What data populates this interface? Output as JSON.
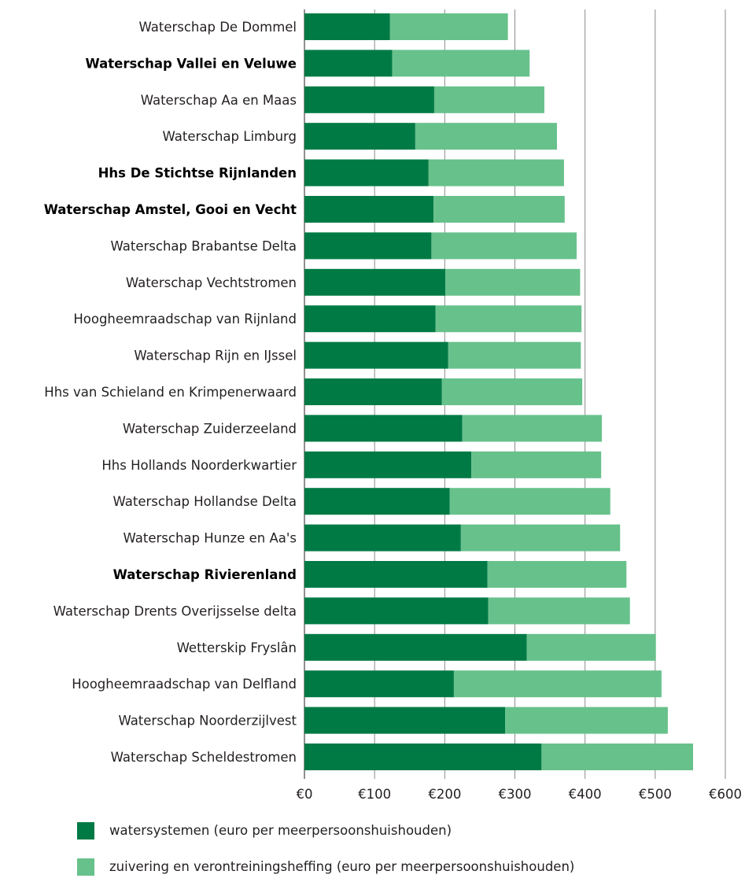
{
  "chart_data": {
    "type": "bar",
    "orientation": "horizontal",
    "stacked": true,
    "categories": [
      "Waterschap De Dommel",
      "Waterschap Vallei en Veluwe",
      "Waterschap Aa en Maas",
      "Waterschap Limburg",
      "Hhs De Stichtse Rijnlanden",
      "Waterschap Amstel, Gooi en Vecht",
      "Waterschap Brabantse Delta",
      "Waterschap Vechtstromen",
      "Hoogheemraadschap van Rijnland",
      "Waterschap Rijn en IJssel",
      "Hhs van Schieland en Krimpenerwaard",
      "Waterschap Zuiderzeeland",
      "Hhs Hollands Noorderkwartier",
      "Waterschap Hollandse Delta",
      "Waterschap Hunze en Aa's",
      "Waterschap Rivierenland",
      "Waterschap Drents Overijsselse delta",
      "Wetterskip Fryslân",
      "Hoogheemraadschap van Delfland",
      "Waterschap Noorderzijlvest",
      "Waterschap Scheldestromen"
    ],
    "highlighted_categories": [
      "Waterschap Vallei en Veluwe",
      "Hhs De Stichtse Rijnlanden",
      "Waterschap Amstel, Gooi en Vecht",
      "Waterschap Rivierenland"
    ],
    "series": [
      {
        "name": "watersystemen (euro per meerpersoonshuishouden)",
        "color": "#007a45",
        "values": [
          122,
          125,
          185,
          158,
          177,
          184,
          181,
          201,
          187,
          205,
          196,
          225,
          238,
          207,
          223,
          261,
          262,
          317,
          213,
          286,
          338
        ]
      },
      {
        "name": "zuivering en verontreiningsheffing (euro per meerpersoonshuishouden)",
        "color": "#67c18b",
        "values": [
          168,
          196,
          157,
          202,
          193,
          187,
          207,
          192,
          208,
          189,
          200,
          199,
          185,
          229,
          227,
          198,
          202,
          184,
          296,
          232,
          216
        ]
      }
    ],
    "xlim": [
      0,
      600
    ],
    "x_ticks": [
      0,
      100,
      200,
      300,
      400,
      500,
      600
    ],
    "x_tick_labels": [
      "€0",
      "€100",
      "€200",
      "€300",
      "€400",
      "€500",
      "€600"
    ],
    "grid": true,
    "legend_position": "bottom-left",
    "title": "",
    "xlabel": "",
    "ylabel": ""
  }
}
